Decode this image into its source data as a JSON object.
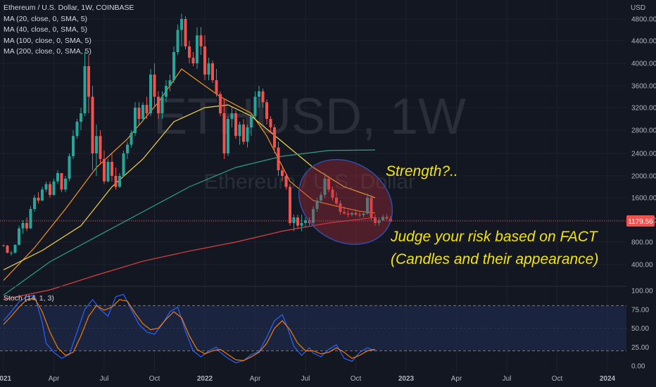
{
  "legend": {
    "title": "Ethereum / U.S. Dollar, 1W, COINBASE",
    "ma20": "MA (20, close, 0, SMA, 5)",
    "ma40": "MA (40, close, 0, SMA, 5)",
    "ma100": "MA (100, close, 0, SMA, 5)",
    "ma200": "MA (200, close, 0, SMA, 5)"
  },
  "stoch_label": "Stoch (14, 1, 3)",
  "watermark": {
    "symbol": "ETHUSD, 1W",
    "name": "Ethereum / U.S. Dollar"
  },
  "annotations": {
    "strength": "Strength?..",
    "judge_line1": "Judge your risk based on FACT",
    "judge_line2": "(Candles and their appearance)"
  },
  "price_label": "1179.56",
  "currency": "USD",
  "colors": {
    "background": "#131722",
    "up": "#26a69a",
    "down": "#ef5350",
    "ma20": "#f7931a",
    "ma40": "#f5d442",
    "ma100": "#2e9e87",
    "ma200": "#e0403f",
    "stoch_k": "#2962ff",
    "stoch_d": "#f57c00",
    "annotation": "#f5e600",
    "ellipse": "#2e4fa8"
  },
  "chart_data": {
    "type": "candlestick",
    "y_ticks": [
      "400.00",
      "800.00",
      "1200.00",
      "1600.00",
      "2000.00",
      "2400.00",
      "2800.00",
      "3200.00",
      "3600.00",
      "4000.00",
      "4400.00",
      "4800.00"
    ],
    "x_ticks": [
      "2021",
      "Apr",
      "Jul",
      "Oct",
      "2022",
      "Apr",
      "Jul",
      "Oct",
      "2023",
      "Apr",
      "Jul",
      "Oct",
      "2024"
    ],
    "stoch_ticks": [
      "0.00",
      "25.00",
      "50.00",
      "75.00",
      "100.00"
    ],
    "ylim": [
      0,
      4900
    ],
    "stoch_ylim": [
      0,
      100
    ],
    "stoch_band": [
      20,
      80
    ],
    "start_week": 4,
    "candles": [
      [
        740,
        760,
        720,
        735
      ],
      [
        735,
        750,
        600,
        610
      ],
      [
        610,
        640,
        560,
        610
      ],
      [
        610,
        760,
        600,
        750
      ],
      [
        750,
        1100,
        740,
        1050
      ],
      [
        1050,
        1200,
        950,
        1150
      ],
      [
        1150,
        1250,
        1000,
        1050
      ],
      [
        1050,
        1450,
        1040,
        1400
      ],
      [
        1400,
        1650,
        1350,
        1600
      ],
      [
        1600,
        1700,
        1500,
        1550
      ],
      [
        1550,
        1800,
        1540,
        1750
      ],
      [
        1750,
        1900,
        1700,
        1850
      ],
      [
        1850,
        1900,
        1600,
        1650
      ],
      [
        1650,
        1950,
        1640,
        1900
      ],
      [
        1900,
        2100,
        1850,
        2050
      ],
      [
        2050,
        2050,
        1700,
        1750
      ],
      [
        1750,
        2000,
        1700,
        1950
      ],
      [
        1950,
        2400,
        1900,
        2350
      ],
      [
        2350,
        2800,
        2300,
        2700
      ],
      [
        2700,
        3000,
        2650,
        2950
      ],
      [
        2950,
        3200,
        2800,
        3100
      ],
      [
        3100,
        4200,
        3050,
        3950
      ],
      [
        3950,
        4150,
        3100,
        3400
      ],
      [
        3400,
        3600,
        2100,
        2400
      ],
      [
        2400,
        2900,
        2000,
        2700
      ],
      [
        2700,
        2800,
        2200,
        2300
      ],
      [
        2300,
        2450,
        1850,
        1900
      ],
      [
        1900,
        2300,
        1880,
        2250
      ],
      [
        2250,
        2400,
        1900,
        2000
      ],
      [
        2000,
        2150,
        1750,
        1800
      ],
      [
        1800,
        2050,
        1780,
        2000
      ],
      [
        2000,
        2450,
        1980,
        2400
      ],
      [
        2400,
        2600,
        2300,
        2550
      ],
      [
        2550,
        2800,
        2500,
        2750
      ],
      [
        2750,
        3300,
        2700,
        3200
      ],
      [
        3200,
        3300,
        2900,
        3000
      ],
      [
        3000,
        3300,
        2950,
        3250
      ],
      [
        3250,
        3400,
        3000,
        3100
      ],
      [
        3100,
        3900,
        3050,
        3800
      ],
      [
        3800,
        4000,
        3200,
        3400
      ],
      [
        3400,
        3500,
        3000,
        3100
      ],
      [
        3100,
        3500,
        3000,
        3400
      ],
      [
        3400,
        3700,
        3300,
        3600
      ],
      [
        3600,
        3800,
        3500,
        3700
      ],
      [
        3700,
        4300,
        3650,
        4200
      ],
      [
        4200,
        4700,
        4150,
        4600
      ],
      [
        4600,
        4900,
        4300,
        4800
      ],
      [
        4800,
        4850,
        4250,
        4300
      ],
      [
        4300,
        4400,
        4000,
        4100
      ],
      [
        4100,
        4200,
        3950,
        4000
      ],
      [
        4000,
        4650,
        3900,
        4500
      ],
      [
        4500,
        4650,
        4150,
        4300
      ],
      [
        4300,
        4500,
        3700,
        3800
      ],
      [
        3800,
        4100,
        3700,
        4000
      ],
      [
        4000,
        4050,
        3650,
        3700
      ],
      [
        3700,
        3900,
        3400,
        3450
      ],
      [
        3450,
        3500,
        3050,
        3100
      ],
      [
        3100,
        3350,
        2300,
        2400
      ],
      [
        2400,
        3050,
        2350,
        3000
      ],
      [
        3000,
        3200,
        2850,
        3100
      ],
      [
        3100,
        3150,
        2650,
        2700
      ],
      [
        2700,
        2950,
        2550,
        2900
      ],
      [
        2900,
        3000,
        2550,
        2600
      ],
      [
        2600,
        2900,
        2500,
        2850
      ],
      [
        2850,
        3100,
        2700,
        3050
      ],
      [
        3050,
        3500,
        3000,
        3400
      ],
      [
        3400,
        3600,
        3200,
        3500
      ],
      [
        3500,
        3550,
        3200,
        3300
      ],
      [
        3300,
        3350,
        2900,
        3000
      ],
      [
        3000,
        3050,
        2750,
        2850
      ],
      [
        2850,
        2900,
        2400,
        2500
      ],
      [
        2500,
        2600,
        2000,
        2100
      ],
      [
        2100,
        2150,
        1900,
        2000
      ],
      [
        2000,
        2050,
        1750,
        1800
      ],
      [
        1800,
        1850,
        1100,
        1150
      ],
      [
        1150,
        1300,
        1000,
        1250
      ],
      [
        1250,
        1300,
        1050,
        1100
      ],
      [
        1100,
        1300,
        1000,
        1150
      ],
      [
        1150,
        1250,
        1080,
        1200
      ],
      [
        1200,
        1250,
        1100,
        1150
      ],
      [
        1150,
        1450,
        1100,
        1400
      ],
      [
        1400,
        1600,
        1350,
        1550
      ],
      [
        1550,
        1700,
        1500,
        1650
      ],
      [
        1650,
        2050,
        1600,
        1950
      ],
      [
        1950,
        2000,
        1700,
        1750
      ],
      [
        1750,
        1800,
        1550,
        1600
      ],
      [
        1600,
        1700,
        1450,
        1500
      ],
      [
        1500,
        1550,
        1300,
        1350
      ],
      [
        1350,
        1450,
        1300,
        1320
      ],
      [
        1320,
        1380,
        1250,
        1300
      ],
      [
        1300,
        1350,
        1270,
        1330
      ],
      [
        1330,
        1390,
        1280,
        1300
      ],
      [
        1300,
        1350,
        1250,
        1290
      ],
      [
        1290,
        1340,
        1250,
        1320
      ],
      [
        1320,
        1680,
        1300,
        1600
      ],
      [
        1600,
        1650,
        1200,
        1250
      ],
      [
        1250,
        1300,
        1100,
        1150
      ],
      [
        1150,
        1250,
        1100,
        1200
      ],
      [
        1200,
        1300,
        1180,
        1260
      ],
      [
        1260,
        1310,
        1200,
        1230
      ],
      [
        1230,
        1280,
        1170,
        1180
      ]
    ],
    "series": [
      {
        "name": "MA (20, close, 0, SMA, 5)",
        "points": [
          [
            4,
            250
          ],
          [
            12,
            700
          ],
          [
            20,
            1400
          ],
          [
            28,
            2150
          ],
          [
            36,
            2650
          ],
          [
            44,
            3300
          ],
          [
            50,
            3900
          ],
          [
            54,
            3700
          ],
          [
            60,
            3400
          ],
          [
            68,
            3100
          ],
          [
            72,
            2700
          ],
          [
            78,
            1900
          ],
          [
            84,
            1550
          ],
          [
            90,
            1450
          ],
          [
            96,
            1360
          ],
          [
            100,
            1330
          ]
        ]
      },
      {
        "name": "MA (40, close, 0, SMA, 5)",
        "points": [
          [
            4,
            350
          ],
          [
            14,
            650
          ],
          [
            24,
            1100
          ],
          [
            32,
            1800
          ],
          [
            40,
            2300
          ],
          [
            48,
            2950
          ],
          [
            56,
            3200
          ],
          [
            62,
            3250
          ],
          [
            68,
            3050
          ],
          [
            76,
            2600
          ],
          [
            84,
            2150
          ],
          [
            92,
            1800
          ],
          [
            98,
            1650
          ],
          [
            100,
            1600
          ]
        ]
      },
      {
        "name": "MA (100, close, 0, SMA, 5)",
        "points": [
          [
            4,
            110
          ],
          [
            16,
            450
          ],
          [
            28,
            900
          ],
          [
            40,
            1350
          ],
          [
            52,
            1800
          ],
          [
            64,
            2150
          ],
          [
            76,
            2350
          ],
          [
            88,
            2450
          ],
          [
            100,
            2460
          ]
        ]
      },
      {
        "name": "MA (200, close, 0, SMA, 5)",
        "points": [
          [
            4,
            70
          ],
          [
            16,
            160
          ],
          [
            28,
            300
          ],
          [
            40,
            460
          ],
          [
            52,
            640
          ],
          [
            64,
            800
          ],
          [
            76,
            1000
          ],
          [
            88,
            1150
          ],
          [
            100,
            1250
          ]
        ]
      }
    ],
    "stoch": {
      "k": [
        [
          4,
          60
        ],
        [
          6,
          72
        ],
        [
          8,
          85
        ],
        [
          10,
          92
        ],
        [
          12,
          94
        ],
        [
          14,
          58
        ],
        [
          15,
          30
        ],
        [
          17,
          18
        ],
        [
          19,
          10
        ],
        [
          21,
          15
        ],
        [
          23,
          45
        ],
        [
          25,
          75
        ],
        [
          27,
          88
        ],
        [
          29,
          75
        ],
        [
          31,
          66
        ],
        [
          33,
          92
        ],
        [
          35,
          95
        ],
        [
          37,
          75
        ],
        [
          39,
          55
        ],
        [
          41,
          45
        ],
        [
          43,
          42
        ],
        [
          45,
          55
        ],
        [
          47,
          72
        ],
        [
          49,
          78
        ],
        [
          51,
          46
        ],
        [
          53,
          20
        ],
        [
          55,
          12
        ],
        [
          57,
          20
        ],
        [
          59,
          25
        ],
        [
          60,
          18
        ],
        [
          62,
          10
        ],
        [
          64,
          4
        ],
        [
          66,
          7
        ],
        [
          68,
          15
        ],
        [
          70,
          19
        ],
        [
          72,
          38
        ],
        [
          74,
          60
        ],
        [
          76,
          68
        ],
        [
          77,
          56
        ],
        [
          79,
          26
        ],
        [
          81,
          14
        ],
        [
          83,
          24
        ],
        [
          84,
          17
        ],
        [
          86,
          12
        ],
        [
          88,
          22
        ],
        [
          90,
          28
        ],
        [
          92,
          10
        ],
        [
          94,
          6
        ],
        [
          96,
          18
        ],
        [
          98,
          24
        ],
        [
          100,
          20
        ]
      ],
      "d": [
        [
          4,
          55
        ],
        [
          6,
          66
        ],
        [
          8,
          78
        ],
        [
          10,
          88
        ],
        [
          12,
          90
        ],
        [
          14,
          72
        ],
        [
          16,
          45
        ],
        [
          18,
          24
        ],
        [
          20,
          14
        ],
        [
          22,
          18
        ],
        [
          24,
          40
        ],
        [
          26,
          66
        ],
        [
          28,
          80
        ],
        [
          30,
          74
        ],
        [
          32,
          78
        ],
        [
          34,
          88
        ],
        [
          36,
          86
        ],
        [
          38,
          70
        ],
        [
          40,
          56
        ],
        [
          42,
          48
        ],
        [
          44,
          50
        ],
        [
          46,
          62
        ],
        [
          48,
          72
        ],
        [
          50,
          64
        ],
        [
          52,
          40
        ],
        [
          54,
          22
        ],
        [
          56,
          16
        ],
        [
          58,
          20
        ],
        [
          60,
          22
        ],
        [
          62,
          15
        ],
        [
          64,
          8
        ],
        [
          66,
          7
        ],
        [
          68,
          12
        ],
        [
          70,
          18
        ],
        [
          72,
          30
        ],
        [
          74,
          50
        ],
        [
          76,
          60
        ],
        [
          78,
          48
        ],
        [
          80,
          30
        ],
        [
          82,
          20
        ],
        [
          84,
          20
        ],
        [
          86,
          16
        ],
        [
          88,
          18
        ],
        [
          90,
          24
        ],
        [
          92,
          18
        ],
        [
          94,
          10
        ],
        [
          96,
          14
        ],
        [
          98,
          20
        ],
        [
          100,
          22
        ]
      ]
    }
  }
}
